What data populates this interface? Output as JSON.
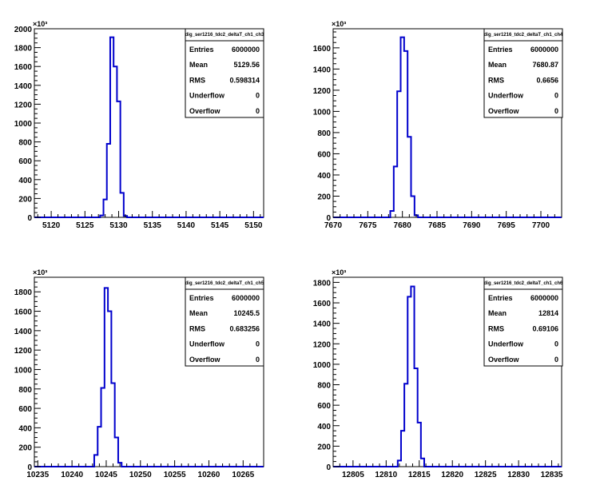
{
  "chart_data": [
    {
      "type": "histogram",
      "stats_title": "dig_ser1216_tdc2_deltaT_ch1_ch3",
      "stats": [
        {
          "label": "Entries",
          "value": "6000000"
        },
        {
          "label": "Mean",
          "value": "5129.56"
        },
        {
          "label": "RMS",
          "value": "0.598314"
        },
        {
          "label": "Underflow",
          "value": "0"
        },
        {
          "label": "Overflow",
          "value": "0"
        }
      ],
      "xlim": [
        5117.5,
        5151.5
      ],
      "ylim": [
        0,
        2000
      ],
      "x_ticks": [
        5120,
        5125,
        5130,
        5135,
        5140,
        5145,
        5150
      ],
      "y_ticks": [
        0,
        200,
        400,
        600,
        800,
        1000,
        1200,
        1400,
        1600,
        1800,
        2000
      ],
      "y_exponent": "×10³",
      "bins": [
        {
          "x": 5127.5,
          "y": 20
        },
        {
          "x": 5128.0,
          "y": 190
        },
        {
          "x": 5128.5,
          "y": 780
        },
        {
          "x": 5129.0,
          "y": 1910
        },
        {
          "x": 5129.5,
          "y": 1600
        },
        {
          "x": 5130.0,
          "y": 1230
        },
        {
          "x": 5130.5,
          "y": 260
        },
        {
          "x": 5131.0,
          "y": 15
        }
      ],
      "bin_width": 0.5
    },
    {
      "type": "histogram",
      "stats_title": "dig_ser1216_tdc2_deltaT_ch1_ch4",
      "stats": [
        {
          "label": "Entries",
          "value": "6000000"
        },
        {
          "label": "Mean",
          "value": "7680.87"
        },
        {
          "label": "RMS",
          "value": "0.6656"
        },
        {
          "label": "Underflow",
          "value": "0"
        },
        {
          "label": "Overflow",
          "value": "0"
        }
      ],
      "xlim": [
        7670,
        7703
      ],
      "ylim": [
        0,
        1780
      ],
      "x_ticks": [
        7670,
        7675,
        7680,
        7685,
        7690,
        7695,
        7700
      ],
      "y_ticks": [
        0,
        200,
        400,
        600,
        800,
        1000,
        1200,
        1400,
        1600
      ],
      "y_exponent": "×10³",
      "bins": [
        {
          "x": 7678.5,
          "y": 60
        },
        {
          "x": 7679.0,
          "y": 480
        },
        {
          "x": 7679.5,
          "y": 1190
        },
        {
          "x": 7680.0,
          "y": 1700
        },
        {
          "x": 7680.5,
          "y": 1570
        },
        {
          "x": 7681.0,
          "y": 760
        },
        {
          "x": 7681.5,
          "y": 200
        },
        {
          "x": 7682.0,
          "y": 20
        }
      ],
      "bin_width": 0.5
    },
    {
      "type": "histogram",
      "stats_title": "dig_ser1216_tdc2_deltaT_ch1_ch5",
      "stats": [
        {
          "label": "Entries",
          "value": "6000000"
        },
        {
          "label": "Mean",
          "value": "10245.5"
        },
        {
          "label": "RMS",
          "value": "0.683256"
        },
        {
          "label": "Underflow",
          "value": "0"
        },
        {
          "label": "Overflow",
          "value": "0"
        }
      ],
      "xlim": [
        10234.5,
        10268
      ],
      "ylim": [
        0,
        1950
      ],
      "x_ticks": [
        10235,
        10240,
        10245,
        10250,
        10255,
        10260,
        10265
      ],
      "y_ticks": [
        0,
        200,
        400,
        600,
        800,
        1000,
        1200,
        1400,
        1600,
        1800
      ],
      "y_exponent": "×10³",
      "bins": [
        {
          "x": 10243.5,
          "y": 120
        },
        {
          "x": 10244.0,
          "y": 410
        },
        {
          "x": 10244.5,
          "y": 810
        },
        {
          "x": 10245.0,
          "y": 1840
        },
        {
          "x": 10245.5,
          "y": 1600
        },
        {
          "x": 10246.0,
          "y": 860
        },
        {
          "x": 10246.5,
          "y": 300
        },
        {
          "x": 10247.0,
          "y": 40
        }
      ],
      "bin_width": 0.5
    },
    {
      "type": "histogram",
      "stats_title": "dig_ser1216_tdc2_deltaT_ch1_ch6",
      "stats": [
        {
          "label": "Entries",
          "value": "6000000"
        },
        {
          "label": "Mean",
          "value": "12814"
        },
        {
          "label": "RMS",
          "value": "0.69106"
        },
        {
          "label": "Underflow",
          "value": "0"
        },
        {
          "label": "Overflow",
          "value": "0"
        }
      ],
      "xlim": [
        12802,
        12836.5
      ],
      "ylim": [
        0,
        1850
      ],
      "x_ticks": [
        12805,
        12810,
        12815,
        12820,
        12825,
        12830,
        12835
      ],
      "y_ticks": [
        0,
        200,
        400,
        600,
        800,
        1000,
        1200,
        1400,
        1600,
        1800
      ],
      "y_exponent": "×10³",
      "bins": [
        {
          "x": 12812.0,
          "y": 60
        },
        {
          "x": 12812.5,
          "y": 350
        },
        {
          "x": 12813.0,
          "y": 810
        },
        {
          "x": 12813.5,
          "y": 1660
        },
        {
          "x": 12814.0,
          "y": 1760
        },
        {
          "x": 12814.5,
          "y": 960
        },
        {
          "x": 12815.0,
          "y": 430
        },
        {
          "x": 12815.5,
          "y": 80
        }
      ],
      "bin_width": 0.5
    }
  ]
}
